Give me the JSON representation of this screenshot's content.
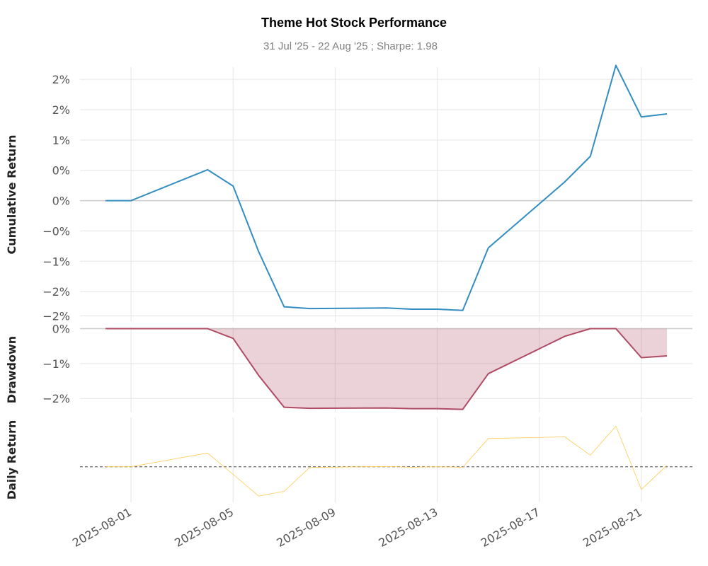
{
  "chart_data": {
    "title": "Theme Hot Stock Performance",
    "subtitle": "31 Jul '25 - 22 Aug '25 ;  Sharpe: 1.98",
    "dates": [
      "2025-07-31",
      "2025-08-01",
      "2025-08-04",
      "2025-08-05",
      "2025-08-06",
      "2025-08-07",
      "2025-08-08",
      "2025-08-11",
      "2025-08-12",
      "2025-08-13",
      "2025-08-14",
      "2025-08-15",
      "2025-08-18",
      "2025-08-19",
      "2025-08-20",
      "2025-08-21",
      "2025-08-22"
    ],
    "x_ticks": [
      "2025-08-01",
      "2025-08-05",
      "2025-08-09",
      "2025-08-13",
      "2025-08-17",
      "2025-08-21"
    ],
    "xlim": [
      "2025-07-30",
      "2025-08-23"
    ],
    "grid": true,
    "panels": [
      {
        "id": "cumulative",
        "ylabel": "Cumulative Return",
        "type": "line",
        "color": "#348dc1",
        "ylim": [
          -2.0,
          2.2
        ],
        "y_ticks": [
          -1.9,
          -1.5,
          -1.0,
          -0.5,
          0.0,
          0.5,
          1.0,
          1.5,
          2.0
        ],
        "y_tick_labels": [
          "−2%",
          "−2%",
          "−1%",
          "−0%",
          "0%",
          "0%",
          "1%",
          "2%",
          "2%"
        ],
        "baseline": 0,
        "values": [
          0.0,
          0.0,
          0.51,
          0.24,
          -0.84,
          -1.75,
          -1.78,
          -1.77,
          -1.79,
          -1.79,
          -1.81,
          -0.78,
          0.31,
          0.73,
          2.23,
          1.38,
          1.43
        ]
      },
      {
        "id": "drawdown",
        "ylabel": "Drawdown",
        "type": "area",
        "color": "#af4b64",
        "fill": "#af4b64",
        "ylim": [
          -2.4,
          0.05
        ],
        "y_ticks": [
          0.0,
          -1.0,
          -2.0
        ],
        "y_tick_labels": [
          "0%",
          "−1%",
          "−2%"
        ],
        "baseline": 0,
        "values": [
          0.0,
          0.0,
          0.0,
          -0.28,
          -1.34,
          -2.25,
          -2.28,
          -2.27,
          -2.29,
          -2.29,
          -2.31,
          -1.29,
          -0.22,
          0.0,
          0.0,
          -0.83,
          -0.78
        ]
      },
      {
        "id": "daily",
        "ylabel": "Daily Return",
        "type": "line",
        "color": "#fecb52",
        "ylim": [
          -1.3,
          1.8
        ],
        "baseline": 0,
        "baseline_style": "dashed",
        "values": [
          0.0,
          0.0,
          0.5,
          -0.28,
          -1.07,
          -0.9,
          -0.03,
          0.01,
          -0.02,
          0.0,
          -0.02,
          1.03,
          1.09,
          0.42,
          1.48,
          -0.83,
          0.05
        ]
      }
    ]
  }
}
